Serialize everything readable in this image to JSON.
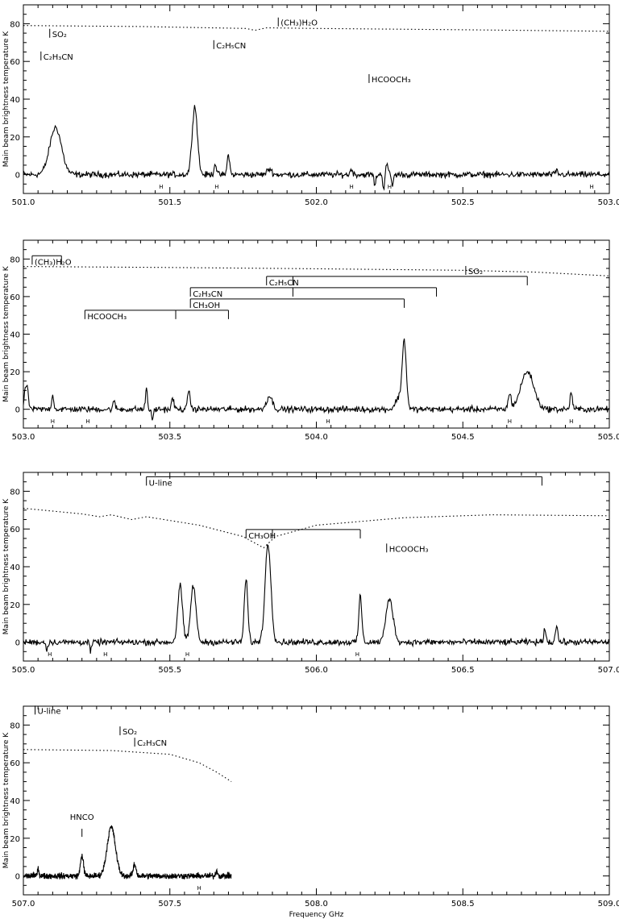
{
  "chart_data": [
    {
      "type": "line",
      "title": "",
      "xlabel": "",
      "ylabel": "Main beam brightness temperature   K",
      "xlim": [
        501.0,
        503.0
      ],
      "ylim": [
        -10,
        90
      ],
      "xticks": [
        "501.0",
        "501.5",
        "502.0",
        "502.5",
        "503.0"
      ],
      "yticks": [
        "0",
        "20",
        "40",
        "60",
        "80"
      ],
      "peaks": [
        {
          "x": 501.11,
          "y": 25,
          "width": 0.02
        },
        {
          "x": 501.585,
          "y": 36,
          "width": 0.009
        },
        {
          "x": 501.655,
          "y": 6,
          "width": 0.004
        },
        {
          "x": 501.7,
          "y": 11,
          "width": 0.004
        },
        {
          "x": 501.84,
          "y": 3,
          "width": 0.008
        },
        {
          "x": 502.12,
          "y": 3,
          "width": 0.004
        },
        {
          "x": 502.24,
          "y": 6,
          "width": 0.004
        },
        {
          "x": 502.2,
          "y": -6,
          "width": 0.003
        },
        {
          "x": 502.23,
          "y": -8,
          "width": 0.003
        },
        {
          "x": 502.26,
          "y": -6,
          "width": 0.003
        },
        {
          "x": 502.82,
          "y": 2,
          "width": 0.004
        }
      ],
      "model": [
        [
          501.0,
          79
        ],
        [
          501.4,
          78.5
        ],
        [
          501.76,
          77.5
        ],
        [
          501.79,
          76.5
        ],
        [
          501.83,
          77.8
        ],
        [
          502.0,
          77.5
        ],
        [
          502.5,
          76.8
        ],
        [
          503.0,
          76
        ]
      ],
      "labels": [
        {
          "text": "(CH₃)H₂O",
          "x": 501.87,
          "y": 79
        },
        {
          "text": "SO₂",
          "x": 501.09,
          "y": 73
        },
        {
          "text": "C₂H₅CN",
          "x": 501.65,
          "y": 67
        },
        {
          "text": "C₂H₃CN",
          "x": 501.06,
          "y": 61
        },
        {
          "text": "HCOOCH₃",
          "x": 502.18,
          "y": 49
        }
      ],
      "h_marks": [
        501.47,
        501.66,
        502.12,
        502.25,
        502.94
      ]
    },
    {
      "type": "line",
      "title": "",
      "xlabel": "",
      "ylabel": "Main beam brightness temperature   K",
      "xlim": [
        503.0,
        505.0
      ],
      "ylim": [
        -10,
        90
      ],
      "xticks": [
        "503.0",
        "503.5",
        "504.0",
        "504.5",
        "505.0"
      ],
      "yticks": [
        "0",
        "20",
        "40",
        "60",
        "80"
      ],
      "peaks": [
        {
          "x": 503.01,
          "y": 13,
          "width": 0.006
        },
        {
          "x": 503.1,
          "y": 7,
          "width": 0.004
        },
        {
          "x": 503.31,
          "y": 4,
          "width": 0.004
        },
        {
          "x": 503.42,
          "y": 12,
          "width": 0.003
        },
        {
          "x": 503.51,
          "y": 6,
          "width": 0.004
        },
        {
          "x": 503.565,
          "y": 11,
          "width": 0.004
        },
        {
          "x": 503.84,
          "y": 7,
          "width": 0.01
        },
        {
          "x": 504.28,
          "y": 6,
          "width": 0.01
        },
        {
          "x": 504.3,
          "y": 36,
          "width": 0.007
        },
        {
          "x": 504.72,
          "y": 20,
          "width": 0.022
        },
        {
          "x": 504.66,
          "y": 8,
          "width": 0.005
        },
        {
          "x": 504.87,
          "y": 9,
          "width": 0.004
        },
        {
          "x": 503.44,
          "y": -6,
          "width": 0.003
        }
      ],
      "model": [
        [
          503.0,
          76
        ],
        [
          503.5,
          75.5
        ],
        [
          504.0,
          74.8
        ],
        [
          504.5,
          74
        ],
        [
          504.75,
          73
        ],
        [
          505.0,
          71
        ]
      ],
      "labels": [
        {
          "text": "(CH₃)H₂O",
          "x": 503.01,
          "y": 77
        },
        {
          "text": "SO₂",
          "x": 504.51,
          "y": 72
        },
        {
          "text": "C₂H₅CN",
          "x": 503.83,
          "y": 66
        },
        {
          "text": "C₂H₃CN",
          "x": 503.57,
          "y": 60
        },
        {
          "text": "CH₃OH",
          "x": 503.57,
          "y": 54
        },
        {
          "text": "HCOOCH₃",
          "x": 503.21,
          "y": 48
        }
      ],
      "h_marks": [
        503.1,
        503.22,
        504.04,
        504.66,
        504.87
      ]
    },
    {
      "type": "line",
      "title": "",
      "xlabel": "",
      "ylabel": "Main beam brightness temperature   K",
      "xlim": [
        505.0,
        507.0
      ],
      "ylim": [
        -10,
        90
      ],
      "xticks": [
        "505.0",
        "505.5",
        "506.0",
        "506.5",
        "507.0"
      ],
      "yticks": [
        "0",
        "20",
        "40",
        "60",
        "80"
      ],
      "peaks": [
        {
          "x": 505.535,
          "y": 30,
          "width": 0.008
        },
        {
          "x": 505.58,
          "y": 30,
          "width": 0.009
        },
        {
          "x": 505.76,
          "y": 33,
          "width": 0.006
        },
        {
          "x": 505.835,
          "y": 52,
          "width": 0.01
        },
        {
          "x": 506.15,
          "y": 25,
          "width": 0.005
        },
        {
          "x": 506.25,
          "y": 23,
          "width": 0.012
        },
        {
          "x": 506.78,
          "y": 7,
          "width": 0.004
        },
        {
          "x": 506.82,
          "y": 9,
          "width": 0.004
        },
        {
          "x": 505.08,
          "y": -4,
          "width": 0.003
        },
        {
          "x": 505.23,
          "y": -5,
          "width": 0.003
        }
      ],
      "model": [
        [
          505.0,
          71
        ],
        [
          505.2,
          68
        ],
        [
          505.26,
          66.5
        ],
        [
          505.3,
          67.5
        ],
        [
          505.37,
          65
        ],
        [
          505.42,
          66.5
        ],
        [
          505.6,
          62
        ],
        [
          505.75,
          56
        ],
        [
          505.82,
          50
        ],
        [
          505.86,
          56
        ],
        [
          506.0,
          62
        ],
        [
          506.3,
          66
        ],
        [
          506.6,
          67.5
        ],
        [
          507.0,
          67
        ]
      ],
      "labels": [
        {
          "text": "U-line",
          "x": 505.42,
          "y": 83
        },
        {
          "text": "CH₃OH",
          "x": 505.76,
          "y": 55
        },
        {
          "text": "HCOOCH₃",
          "x": 506.24,
          "y": 48
        }
      ],
      "h_marks": [
        505.09,
        505.28,
        505.56,
        506.14
      ]
    },
    {
      "type": "line",
      "title": "",
      "xlabel": "Frequency  GHz",
      "ylabel": "Main beam brightness temperature   K",
      "xlim": [
        507.0,
        509.0
      ],
      "ylim": [
        -10,
        90
      ],
      "xticks": [
        "507.0",
        "507.5",
        "508.0",
        "508.5",
        "509.0"
      ],
      "yticks": [
        "0",
        "20",
        "40",
        "60",
        "80"
      ],
      "peaks": [
        {
          "x": 507.05,
          "y": 4,
          "width": 0.003
        },
        {
          "x": 507.2,
          "y": 11,
          "width": 0.005
        },
        {
          "x": 507.3,
          "y": 26,
          "width": 0.014
        },
        {
          "x": 507.38,
          "y": 6,
          "width": 0.005
        },
        {
          "x": 507.66,
          "y": 3,
          "width": 0.003
        }
      ],
      "model": [
        [
          507.0,
          67
        ],
        [
          507.3,
          66.5
        ],
        [
          507.5,
          64.5
        ],
        [
          507.6,
          60
        ],
        [
          507.66,
          55
        ],
        [
          507.71,
          50
        ]
      ],
      "labels": [
        {
          "text": "U-line",
          "x": 507.04,
          "y": 86
        },
        {
          "text": "SO₂",
          "x": 507.33,
          "y": 75
        },
        {
          "text": "C₂H₃CN",
          "x": 507.38,
          "y": 69
        },
        {
          "text": "HNCO",
          "x": 507.2,
          "y": 28
        }
      ],
      "h_marks": [
        507.6
      ]
    }
  ]
}
